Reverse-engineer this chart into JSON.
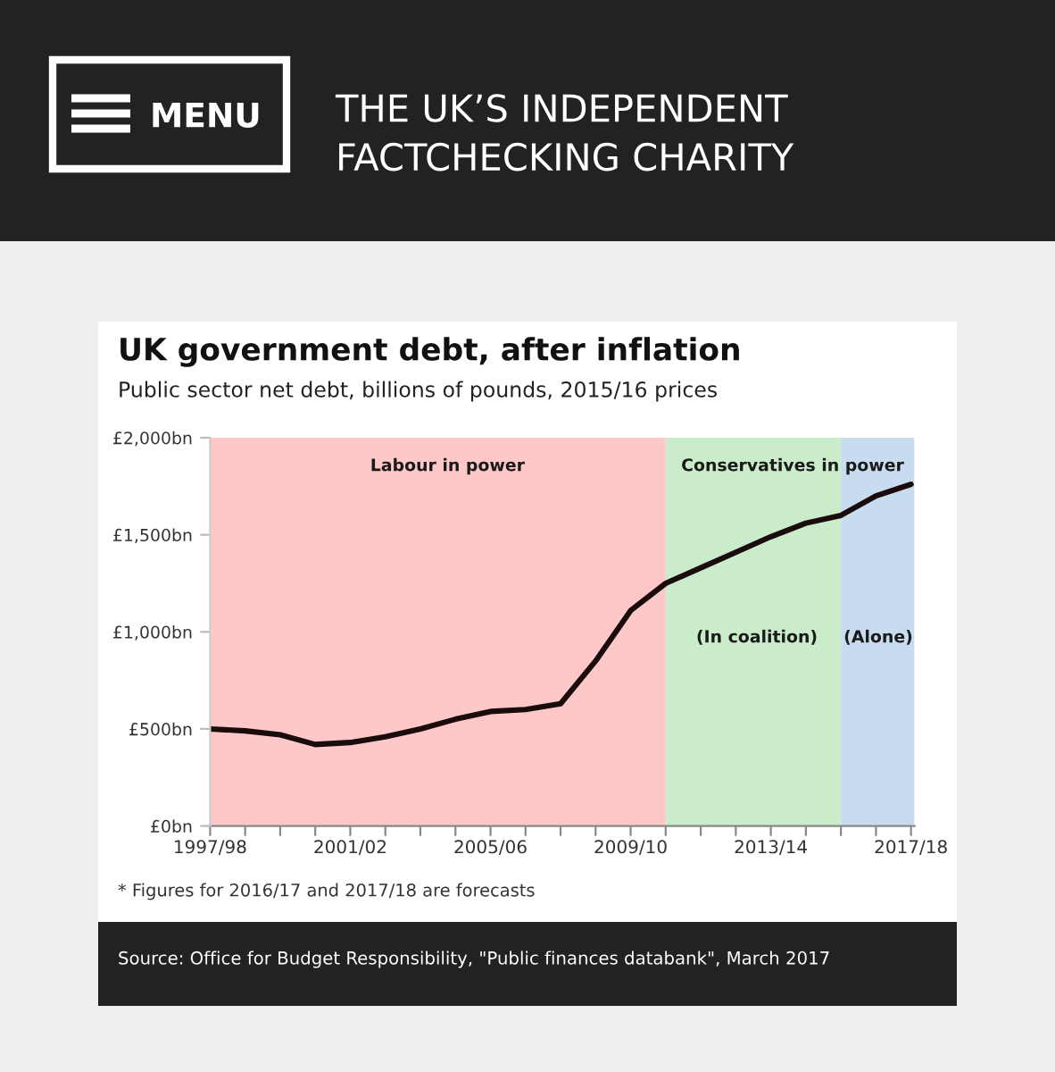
{
  "chart_data": {
    "type": "line",
    "title": "UK government debt, after inflation",
    "subtitle": "Public sector net debt, billions of pounds, 2015/16 prices",
    "categories": [
      "1997/98",
      null,
      null,
      null,
      "2001/02",
      null,
      null,
      null,
      "2005/06",
      null,
      null,
      null,
      "2009/10",
      null,
      null,
      null,
      "2013/14",
      null,
      null,
      null,
      "2017/18"
    ],
    "values": [
      500,
      490,
      470,
      420,
      430,
      460,
      500,
      550,
      590,
      600,
      630,
      850,
      1110,
      1250,
      1330,
      1410,
      1490,
      1560,
      1600,
      1700,
      1760
    ],
    "color": "#1a0c0c",
    "ylim": [
      0,
      2000
    ],
    "yticks": [
      {
        "value": 0,
        "label": "£0bn"
      },
      {
        "value": 500,
        "label": "£500bn"
      },
      {
        "value": 1000,
        "label": "£1,000bn"
      },
      {
        "value": 1500,
        "label": "£1,500bn"
      },
      {
        "value": 2000,
        "label": "£2,000bn"
      }
    ],
    "annotations": [
      "MENU",
      "THE UK’S INDEPENDENT\nFACTCHECKING CHARITY",
      "Labour in power",
      "Conservatives in power",
      "(In coalition)",
      "(Alone)",
      "* Figures for 2016/17 and 2017/18 are forecasts",
      "Source: Office for Budget Responsibility, \"Public finances databank\", March 2017"
    ]
  }
}
